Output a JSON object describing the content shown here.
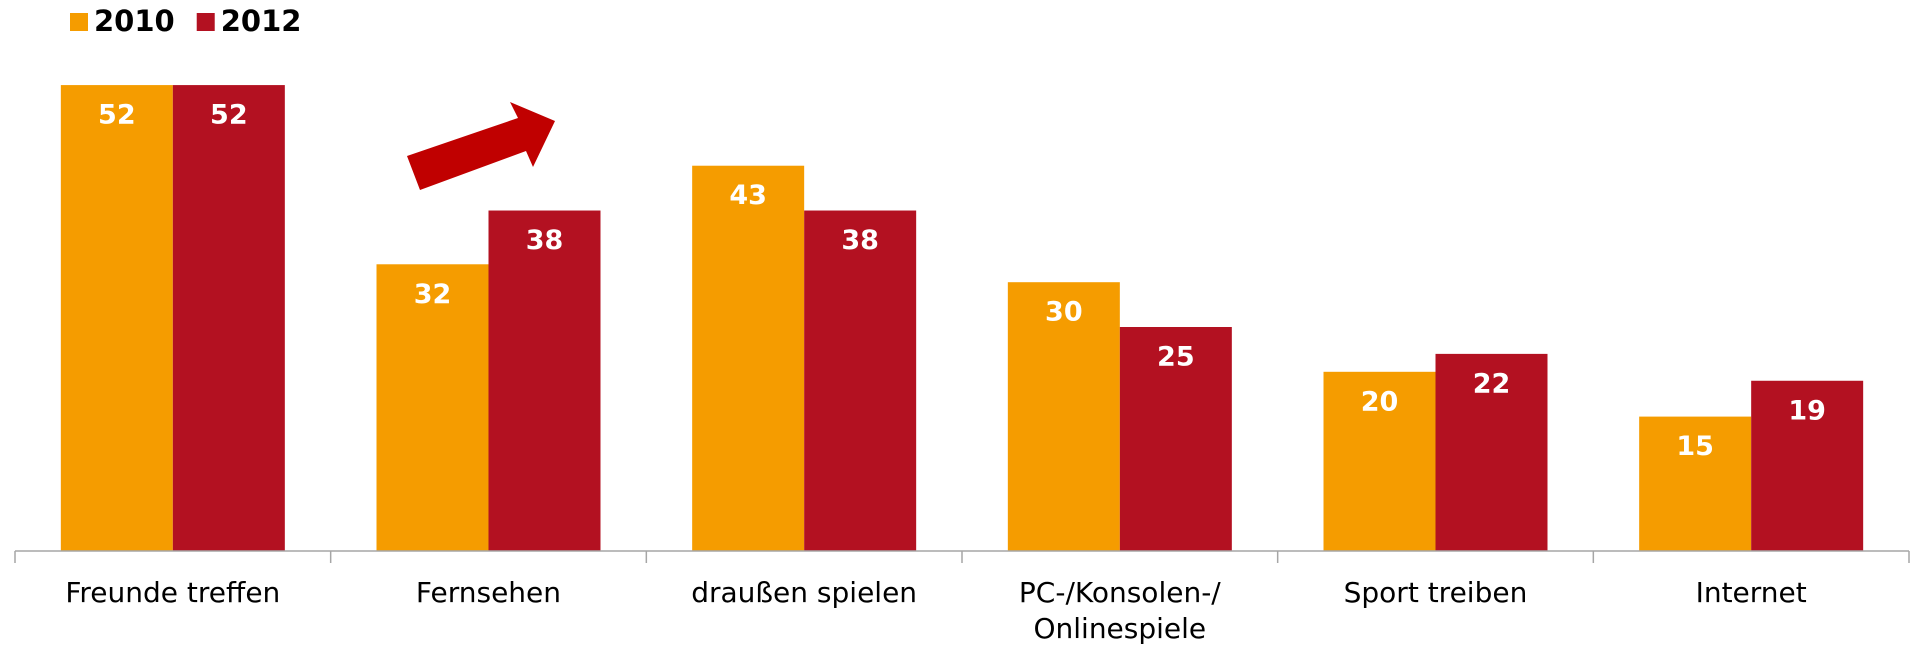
{
  "chart_data": {
    "type": "bar",
    "categories": [
      "Freunde treffen",
      "Fernsehen",
      "draußen spielen",
      "PC-/Konsolen-/ Onlinespiele",
      "Sport treiben",
      "Internet"
    ],
    "series": [
      {
        "name": "2010",
        "color": "#f59c00",
        "values": [
          52,
          32,
          43,
          30,
          20,
          15
        ]
      },
      {
        "name": "2012",
        "color": "#b31121",
        "values": [
          52,
          38,
          38,
          25,
          22,
          19
        ]
      }
    ],
    "legend": "top-left"
  }
}
